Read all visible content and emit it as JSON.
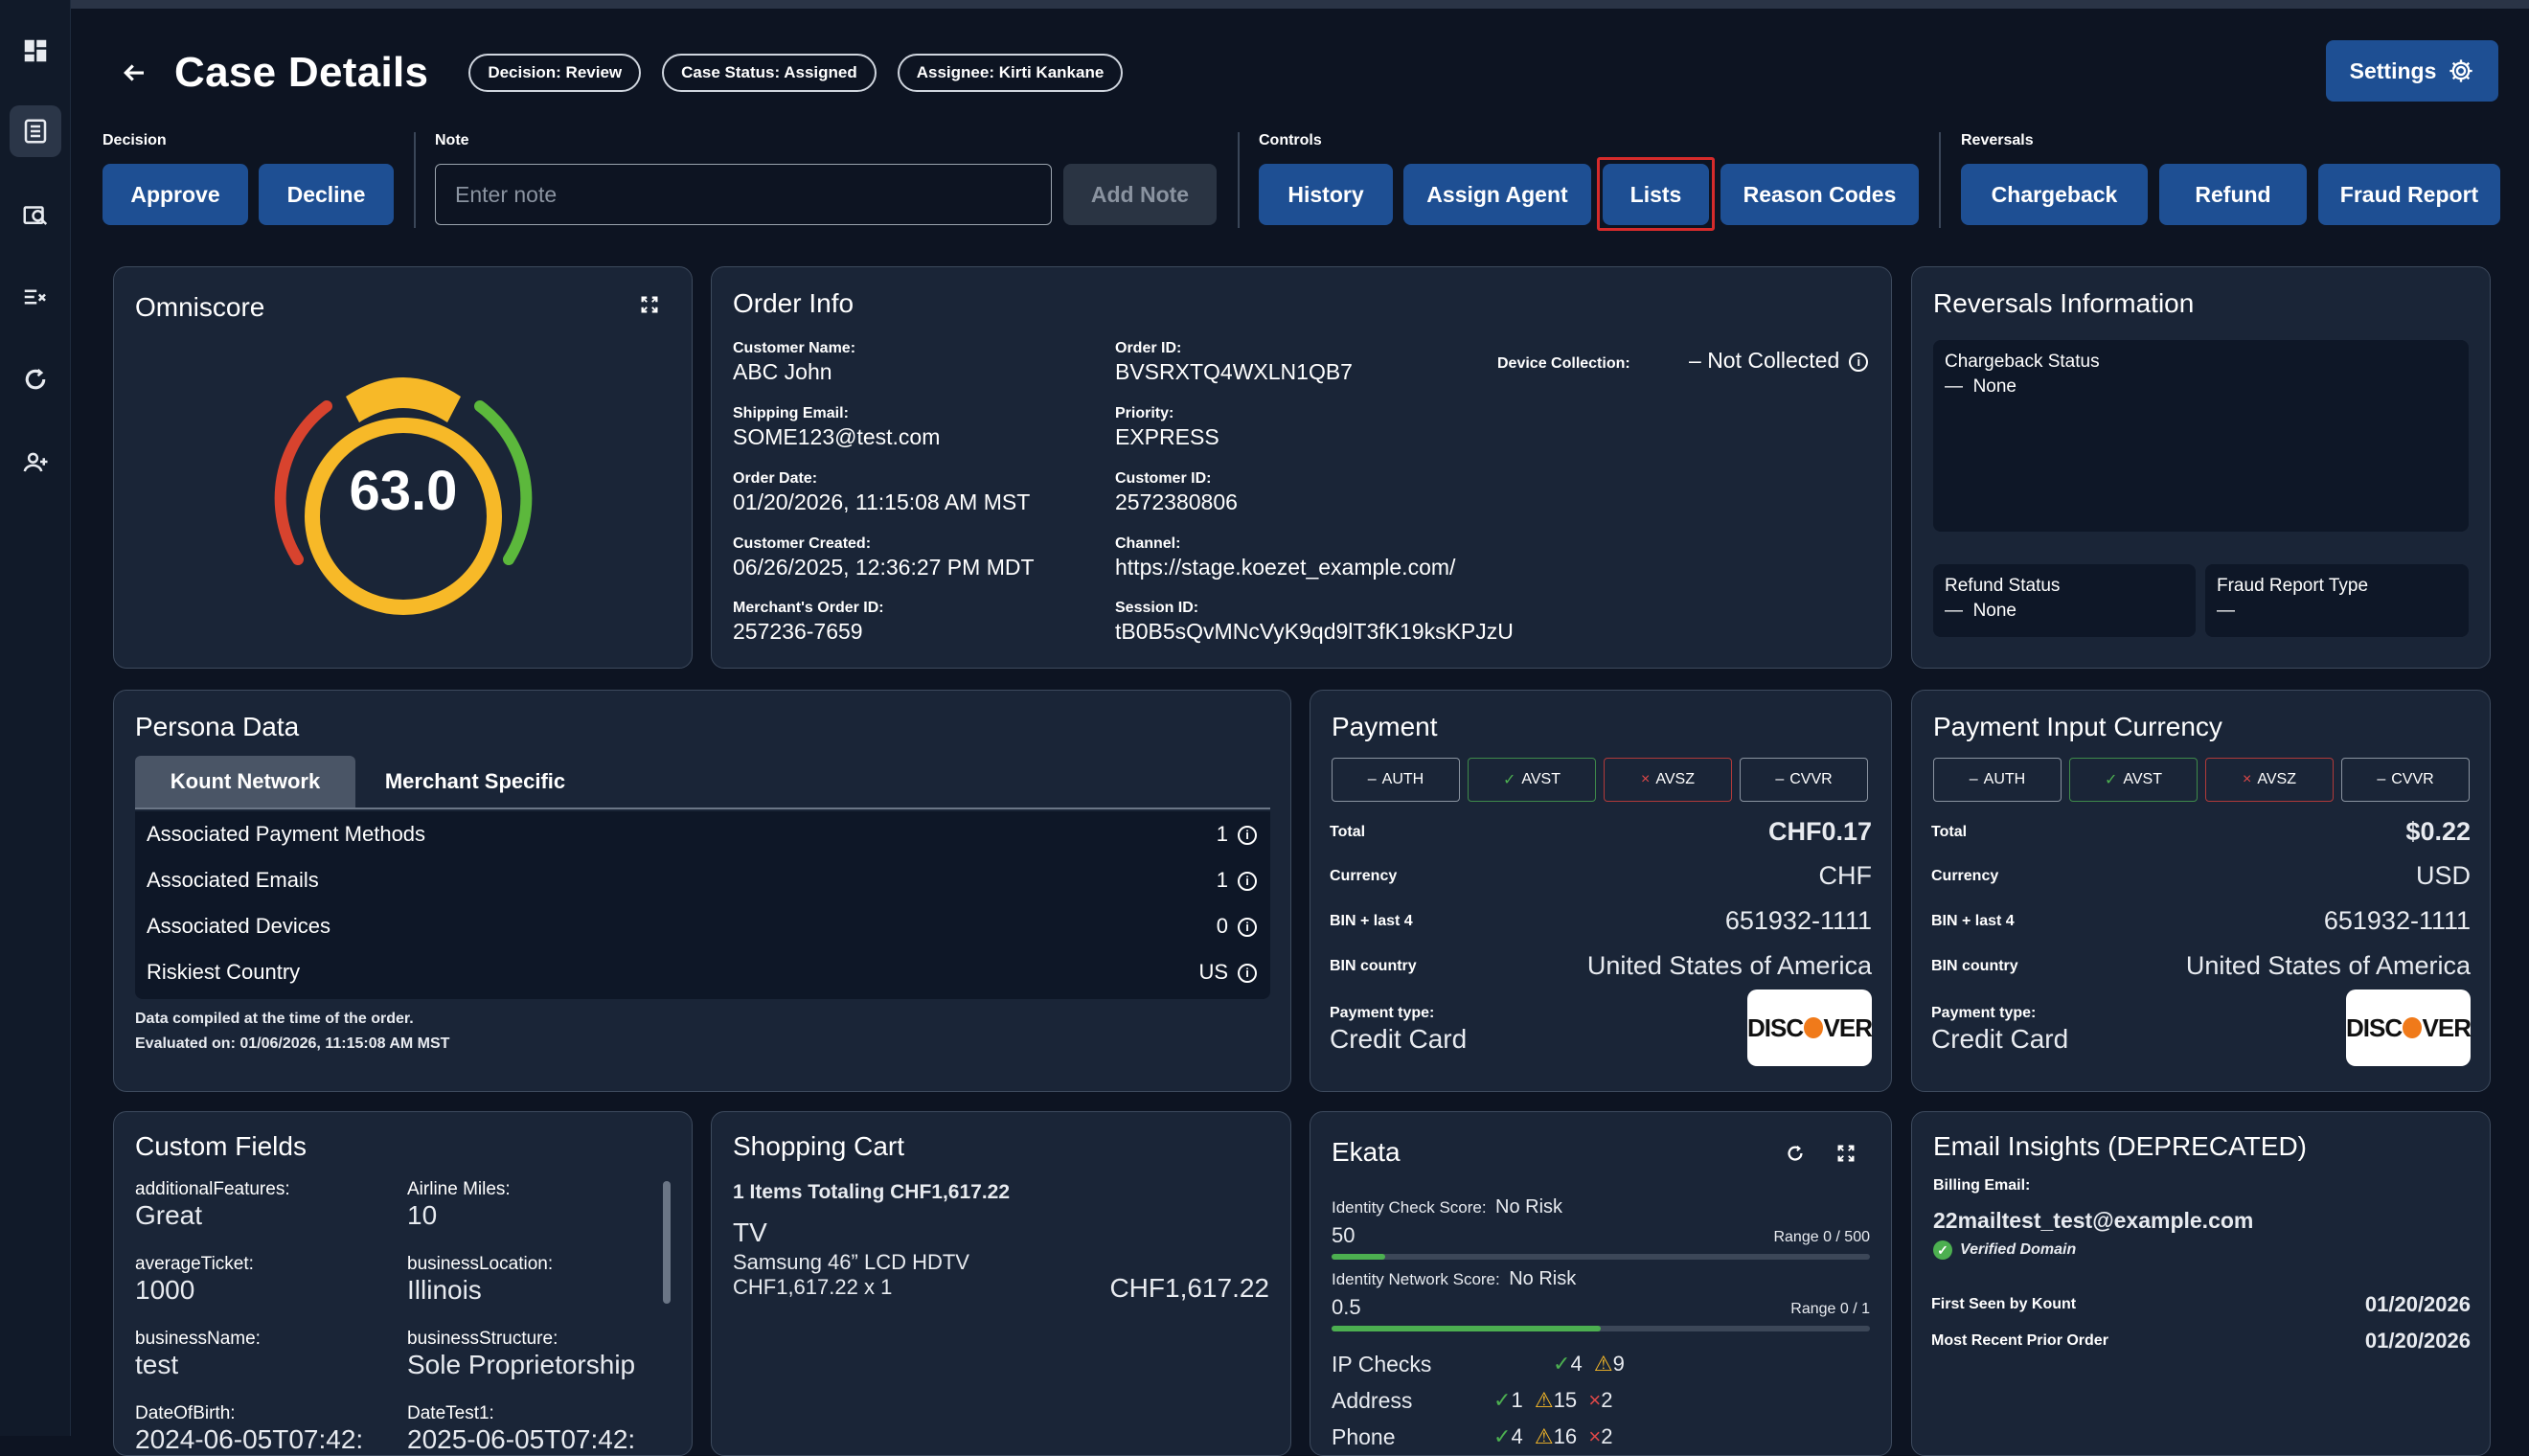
{
  "header": {
    "title": "Case Details",
    "pills": [
      "Decision: Review",
      "Case Status: Assigned",
      "Assignee: Kirti Kankane"
    ],
    "settings_label": "Settings"
  },
  "controls": {
    "decision_label": "Decision",
    "approve": "Approve",
    "decline": "Decline",
    "note_label": "Note",
    "note_placeholder": "Enter note",
    "add_note": "Add Note",
    "controls_label": "Controls",
    "history": "History",
    "assign_agent": "Assign Agent",
    "lists": "Lists",
    "reason_codes": "Reason Codes",
    "reversals_label": "Reversals",
    "chargeback": "Chargeback",
    "refund": "Refund",
    "fraud_report": "Fraud Report"
  },
  "omniscore": {
    "title": "Omniscore",
    "score": "63.0",
    "score_value": 63
  },
  "order_info": {
    "title": "Order Info",
    "customer_name_label": "Customer Name:",
    "customer_name": "ABC John",
    "shipping_email_label": "Shipping Email:",
    "shipping_email": "SOME123@test.com",
    "order_date_label": "Order Date:",
    "order_date": "01/20/2026, 11:15:08 AM MST",
    "customer_created_label": "Customer Created:",
    "customer_created": "06/26/2025, 12:36:27 PM MDT",
    "merchant_order_id_label": "Merchant's Order ID:",
    "merchant_order_id": "257236-7659",
    "order_id_label": "Order ID:",
    "order_id": "BVSRXTQ4WXLN1QB7",
    "priority_label": "Priority:",
    "priority": "EXPRESS",
    "customer_id_label": "Customer ID:",
    "customer_id": "2572380806",
    "channel_label": "Channel:",
    "channel": "https://stage.koezet_example.com/",
    "session_id_label": "Session ID:",
    "session_id": "tB0B5sQvMNcVyK9qd9lT3fK19ksKPJzU",
    "device_collection_label": "Device Collection:",
    "device_collection": "Not Collected"
  },
  "reversals": {
    "title": "Reversals Information",
    "chargeback_status_label": "Chargeback Status",
    "chargeback_status": "None",
    "refund_status_label": "Refund Status",
    "refund_status": "None",
    "fraud_report_type_label": "Fraud Report Type"
  },
  "persona": {
    "title": "Persona Data",
    "tabs": [
      "Kount Network",
      "Merchant Specific"
    ],
    "rows": [
      {
        "label": "Associated Payment Methods",
        "value": "1"
      },
      {
        "label": "Associated Emails",
        "value": "1"
      },
      {
        "label": "Associated Devices",
        "value": "0"
      },
      {
        "label": "Riskiest Country",
        "value": "US"
      }
    ],
    "footer1": "Data compiled at the time of the order.",
    "footer2": "Evaluated on: 01/06/2026, 11:15:08 AM MST"
  },
  "payment": {
    "title": "Payment",
    "checks": [
      "AUTH",
      "AVST",
      "AVSZ",
      "CVVR"
    ],
    "total_label": "Total",
    "total": "CHF0.17",
    "currency_label": "Currency",
    "currency": "CHF",
    "bin_label": "BIN + last 4",
    "bin": "651932-1111",
    "bin_country_label": "BIN country",
    "bin_country": "United States of America",
    "type_label": "Payment type:",
    "type": "Credit Card"
  },
  "payment_input": {
    "title": "Payment Input Currency",
    "checks": [
      "AUTH",
      "AVST",
      "AVSZ",
      "CVVR"
    ],
    "total_label": "Total",
    "total": "$0.22",
    "currency_label": "Currency",
    "currency": "USD",
    "bin_label": "BIN + last 4",
    "bin": "651932-1111",
    "bin_country_label": "BIN country",
    "bin_country": "United States of America",
    "type_label": "Payment type:",
    "type": "Credit Card"
  },
  "custom_fields": {
    "title": "Custom Fields",
    "items": [
      {
        "label": "additionalFeatures:",
        "value": "Great"
      },
      {
        "label": "Airline Miles:",
        "value": "10"
      },
      {
        "label": "averageTicket:",
        "value": "1000"
      },
      {
        "label": "businessLocation:",
        "value": "Illinois"
      },
      {
        "label": "businessName:",
        "value": "test"
      },
      {
        "label": "businessStructure:",
        "value": "Sole Proprietorship"
      },
      {
        "label": "DateOfBirth:",
        "value": "2024-06-05T07:42:"
      },
      {
        "label": "DateTest1:",
        "value": "2025-06-05T07:42:"
      }
    ]
  },
  "cart": {
    "title": "Shopping Cart",
    "summary": "1 Items Totaling CHF1,617.22",
    "item_name": "TV",
    "item_desc": "Samsung 46” LCD HDTV",
    "item_qty": "CHF1,617.22 x 1",
    "item_total": "CHF1,617.22"
  },
  "ekata": {
    "title": "Ekata",
    "identity_check_label": "Identity Check Score:",
    "identity_check_risk": "No Risk",
    "identity_check_score": "50",
    "identity_check_range": "Range 0 / 500",
    "identity_check_fraction": 0.1,
    "identity_network_label": "Identity Network Score:",
    "identity_network_risk": "No Risk",
    "identity_network_score": "0.5",
    "identity_network_range": "Range 0 / 1",
    "identity_network_fraction": 0.5,
    "checks": [
      {
        "label": "IP Checks",
        "ok": "4",
        "warn": "9",
        "bad": ""
      },
      {
        "label": "Address",
        "ok": "1",
        "warn": "15",
        "bad": "2"
      },
      {
        "label": "Phone",
        "ok": "4",
        "warn": "16",
        "bad": "2"
      }
    ]
  },
  "email_insights": {
    "title": "Email Insights (DEPRECATED)",
    "billing_email_label": "Billing Email:",
    "billing_email": "22mailtest_test@example.com",
    "verified": "Verified Domain",
    "first_seen_label": "First Seen by Kount",
    "first_seen": "01/20/2026",
    "recent_order_label": "Most Recent Prior Order",
    "recent_order": "01/20/2026"
  },
  "colors": {
    "accent": "#1e4f93",
    "highlight": "#d62b2b",
    "gauge_yellow": "#f7b928",
    "gauge_red": "#d8432e",
    "gauge_green": "#5cb83c"
  }
}
